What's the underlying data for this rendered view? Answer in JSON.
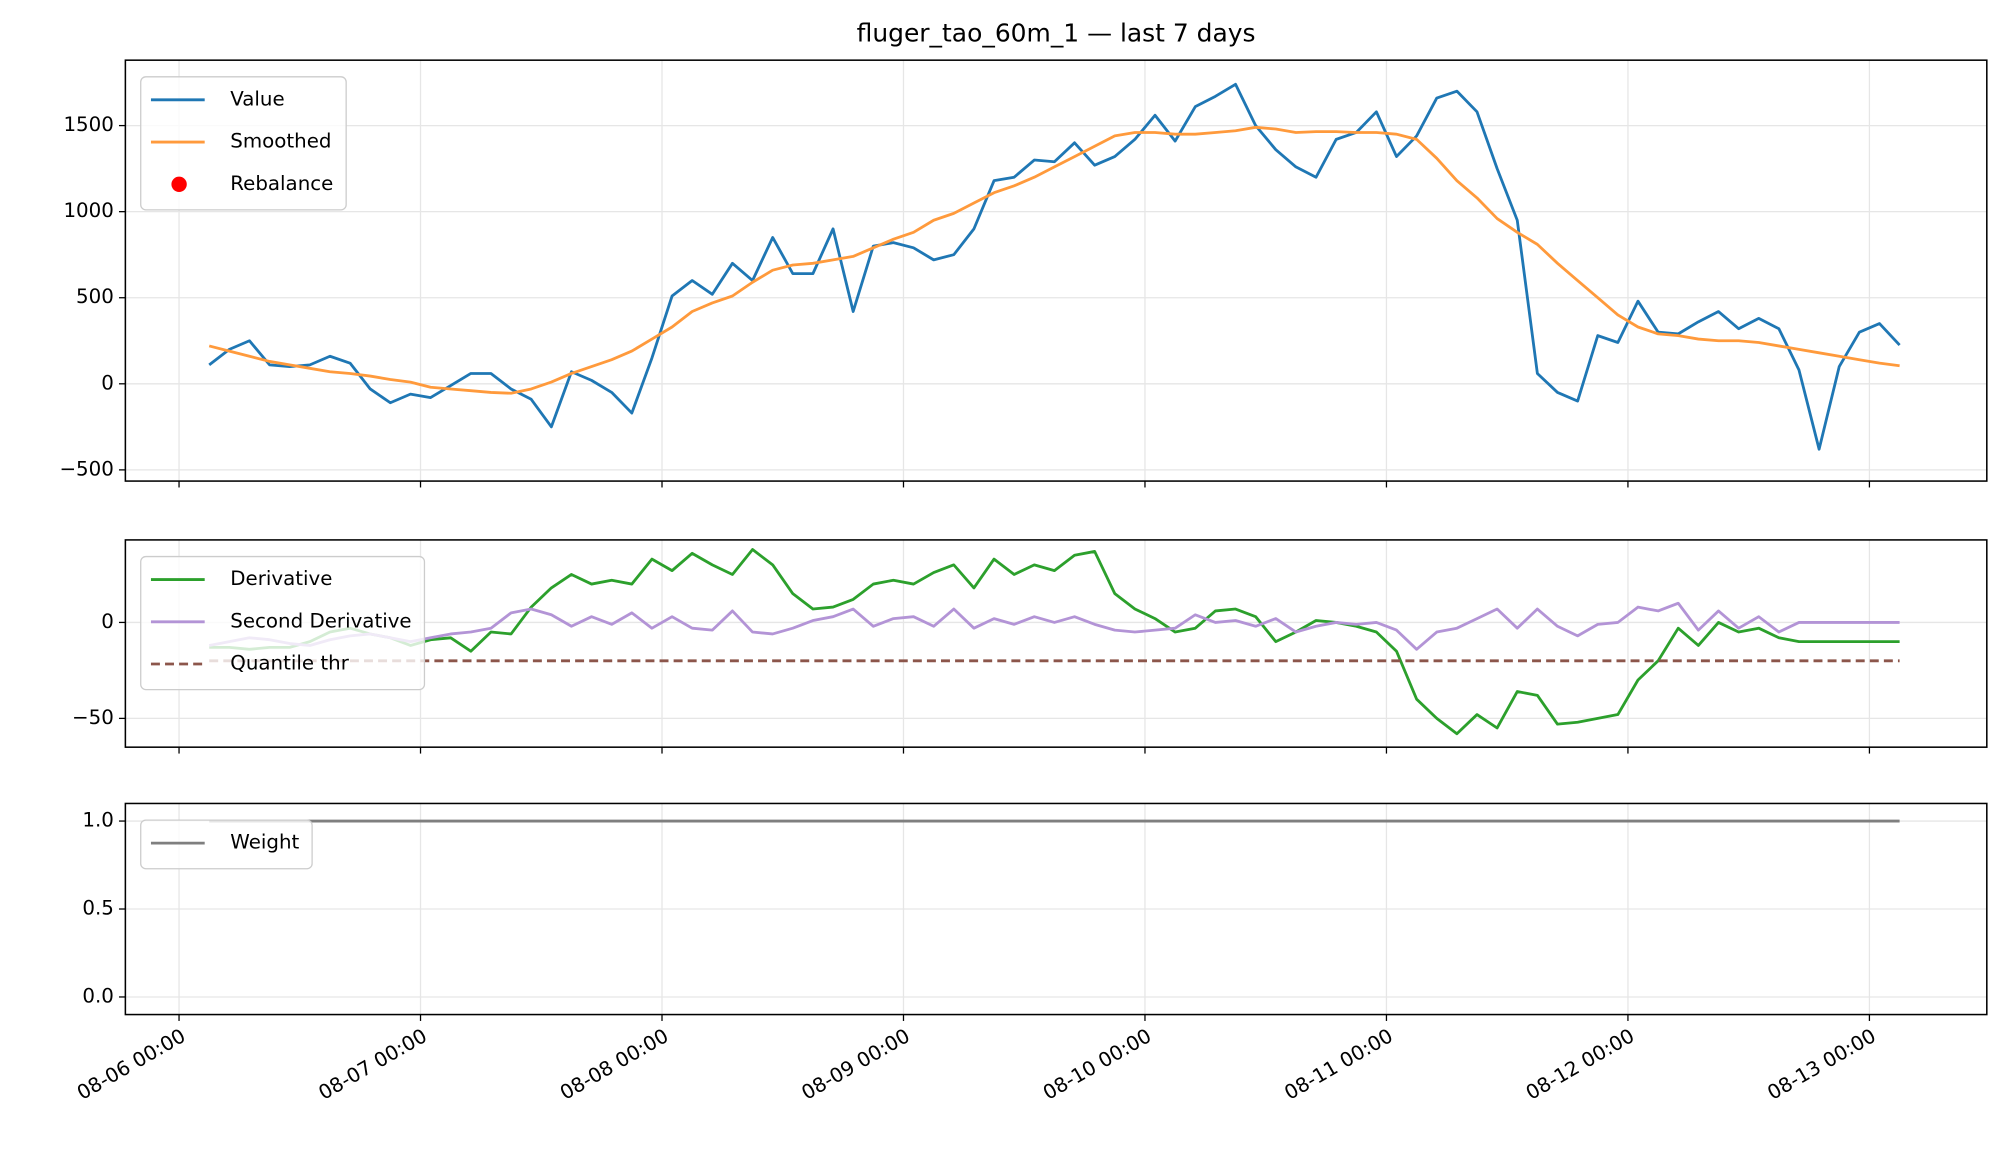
{
  "chart_data": [
    {
      "type": "line",
      "title": "fluger_tao_60m_1 — last 7 days",
      "legend": "upper left",
      "grid": true,
      "xlim": [
        "08-05 18:40",
        "08-13 11:40"
      ],
      "xticks": [
        "08-06 00:00",
        "08-07 00:00",
        "08-08 00:00",
        "08-09 00:00",
        "08-10 00:00",
        "08-11 00:00",
        "08-12 00:00",
        "08-13 00:00"
      ],
      "ylim": [
        -565,
        1880
      ],
      "yticks": [
        {
          "value": -500,
          "label": "−500"
        },
        0,
        500,
        1000,
        1500
      ],
      "x": [
        "08-06 03:00",
        "08-06 05:00",
        "08-06 07:00",
        "08-06 09:00",
        "08-06 11:00",
        "08-06 13:00",
        "08-06 15:00",
        "08-06 17:00",
        "08-06 19:00",
        "08-06 21:00",
        "08-06 23:00",
        "08-07 01:00",
        "08-07 03:00",
        "08-07 05:00",
        "08-07 07:00",
        "08-07 09:00",
        "08-07 11:00",
        "08-07 13:00",
        "08-07 15:00",
        "08-07 17:00",
        "08-07 19:00",
        "08-07 21:00",
        "08-07 23:00",
        "08-08 01:00",
        "08-08 03:00",
        "08-08 05:00",
        "08-08 07:00",
        "08-08 09:00",
        "08-08 11:00",
        "08-08 13:00",
        "08-08 15:00",
        "08-08 17:00",
        "08-08 19:00",
        "08-08 21:00",
        "08-08 23:00",
        "08-09 01:00",
        "08-09 03:00",
        "08-09 05:00",
        "08-09 07:00",
        "08-09 09:00",
        "08-09 11:00",
        "08-09 13:00",
        "08-09 15:00",
        "08-09 17:00",
        "08-09 19:00",
        "08-09 21:00",
        "08-09 23:00",
        "08-10 01:00",
        "08-10 03:00",
        "08-10 05:00",
        "08-10 07:00",
        "08-10 09:00",
        "08-10 11:00",
        "08-10 13:00",
        "08-10 15:00",
        "08-10 17:00",
        "08-10 19:00",
        "08-10 21:00",
        "08-10 23:00",
        "08-11 01:00",
        "08-11 03:00",
        "08-11 05:00",
        "08-11 07:00",
        "08-11 09:00",
        "08-11 11:00",
        "08-11 13:00",
        "08-11 15:00",
        "08-11 17:00",
        "08-11 19:00",
        "08-11 21:00",
        "08-11 23:00",
        "08-12 01:00",
        "08-12 03:00",
        "08-12 05:00",
        "08-12 07:00",
        "08-12 09:00",
        "08-12 11:00",
        "08-12 13:00",
        "08-12 15:00",
        "08-12 17:00",
        "08-12 19:00",
        "08-12 21:00",
        "08-12 23:00",
        "08-13 01:00",
        "08-13 03:00"
      ],
      "series": [
        {
          "name": "Value",
          "color": "#1f77b4",
          "values": [
            110,
            200,
            250,
            110,
            100,
            110,
            160,
            120,
            -30,
            -110,
            -60,
            -80,
            -10,
            60,
            60,
            -30,
            -90,
            -250,
            70,
            20,
            -50,
            -170,
            150,
            510,
            600,
            520,
            700,
            600,
            850,
            640,
            640,
            900,
            420,
            800,
            820,
            790,
            720,
            750,
            900,
            1180,
            1200,
            1300,
            1290,
            1400,
            1270,
            1320,
            1420,
            1560,
            1410,
            1610,
            1670,
            1740,
            1500,
            1360,
            1260,
            1200,
            1420,
            1460,
            1580,
            1320,
            1440,
            1660,
            1700,
            1580,
            1250,
            950,
            60,
            -50,
            -100,
            280,
            240,
            480,
            300,
            290,
            360,
            420,
            320,
            380,
            320,
            80,
            -380,
            100,
            300,
            350,
            225
          ]
        },
        {
          "name": "Smoothed",
          "color": "#ff9a3c",
          "values": [
            220,
            190,
            160,
            130,
            110,
            90,
            70,
            60,
            45,
            25,
            10,
            -20,
            -30,
            -40,
            -50,
            -55,
            -30,
            10,
            60,
            100,
            140,
            190,
            260,
            330,
            420,
            470,
            510,
            590,
            660,
            690,
            700,
            720,
            740,
            790,
            840,
            880,
            950,
            990,
            1050,
            1110,
            1150,
            1200,
            1260,
            1320,
            1380,
            1440,
            1460,
            1460,
            1450,
            1450,
            1460,
            1470,
            1490,
            1480,
            1460,
            1465,
            1465,
            1460,
            1460,
            1450,
            1420,
            1310,
            1180,
            1080,
            960,
            880,
            810,
            700,
            600,
            500,
            400,
            330,
            290,
            280,
            260,
            250,
            250,
            240,
            220,
            200,
            180,
            160,
            140,
            120,
            105
          ]
        },
        {
          "name": "Rebalance",
          "type": "scatter",
          "color": "red",
          "values": [
            null,
            null,
            null,
            null,
            null,
            null,
            null,
            null,
            null,
            null,
            null,
            null,
            null,
            null,
            null,
            null,
            null,
            null,
            null,
            null,
            null,
            null,
            null,
            null,
            null,
            null,
            null,
            null,
            null,
            null,
            null,
            null,
            null,
            null,
            null,
            null,
            null,
            null,
            null,
            null,
            null,
            null,
            null,
            null,
            null,
            null,
            null,
            null,
            null,
            null,
            null,
            null,
            null,
            null,
            null,
            null,
            null,
            null,
            null,
            null,
            null,
            null,
            null,
            null,
            null,
            null,
            null,
            null,
            null,
            null,
            null,
            null,
            null,
            null,
            null,
            null,
            null,
            null,
            null,
            null,
            null,
            null,
            null,
            null,
            null
          ]
        }
      ]
    },
    {
      "type": "line",
      "legend": "upper left",
      "grid": true,
      "xlim": [
        "08-05 18:40",
        "08-13 11:40"
      ],
      "xticks": [
        "08-06 00:00",
        "08-07 00:00",
        "08-08 00:00",
        "08-09 00:00",
        "08-10 00:00",
        "08-11 00:00",
        "08-12 00:00",
        "08-13 00:00"
      ],
      "ylim": [
        -65,
        43
      ],
      "yticks": [
        {
          "value": -50,
          "label": "−50"
        },
        0
      ],
      "x": [
        "08-06 03:00",
        "08-06 05:00",
        "08-06 07:00",
        "08-06 09:00",
        "08-06 11:00",
        "08-06 13:00",
        "08-06 15:00",
        "08-06 17:00",
        "08-06 19:00",
        "08-06 21:00",
        "08-06 23:00",
        "08-07 01:00",
        "08-07 03:00",
        "08-07 05:00",
        "08-07 07:00",
        "08-07 09:00",
        "08-07 11:00",
        "08-07 13:00",
        "08-07 15:00",
        "08-07 17:00",
        "08-07 19:00",
        "08-07 21:00",
        "08-07 23:00",
        "08-08 01:00",
        "08-08 03:00",
        "08-08 05:00",
        "08-08 07:00",
        "08-08 09:00",
        "08-08 11:00",
        "08-08 13:00",
        "08-08 15:00",
        "08-08 17:00",
        "08-08 19:00",
        "08-08 21:00",
        "08-08 23:00",
        "08-09 01:00",
        "08-09 03:00",
        "08-09 05:00",
        "08-09 07:00",
        "08-09 09:00",
        "08-09 11:00",
        "08-09 13:00",
        "08-09 15:00",
        "08-09 17:00",
        "08-09 19:00",
        "08-09 21:00",
        "08-09 23:00",
        "08-10 01:00",
        "08-10 03:00",
        "08-10 05:00",
        "08-10 07:00",
        "08-10 09:00",
        "08-10 11:00",
        "08-10 13:00",
        "08-10 15:00",
        "08-10 17:00",
        "08-10 19:00",
        "08-10 21:00",
        "08-10 23:00",
        "08-11 01:00",
        "08-11 03:00",
        "08-11 05:00",
        "08-11 07:00",
        "08-11 09:00",
        "08-11 11:00",
        "08-11 13:00",
        "08-11 15:00",
        "08-11 17:00",
        "08-11 19:00",
        "08-11 21:00",
        "08-11 23:00",
        "08-12 01:00",
        "08-12 03:00",
        "08-12 05:00",
        "08-12 07:00",
        "08-12 09:00",
        "08-12 11:00",
        "08-12 13:00",
        "08-12 15:00",
        "08-12 17:00",
        "08-12 19:00",
        "08-12 21:00",
        "08-12 23:00",
        "08-13 01:00",
        "08-13 03:00"
      ],
      "series": [
        {
          "name": "Derivative",
          "color": "#2ca02c",
          "values": [
            -13,
            -13,
            -14,
            -13,
            -13,
            -10,
            -5,
            -3,
            -6,
            -8,
            -12,
            -9,
            -8,
            -15,
            -5,
            -6,
            8,
            18,
            25,
            20,
            22,
            20,
            33,
            27,
            36,
            30,
            25,
            38,
            30,
            15,
            7,
            8,
            12,
            20,
            22,
            20,
            26,
            30,
            18,
            33,
            25,
            30,
            27,
            35,
            37,
            15,
            7,
            2,
            -5,
            -3,
            6,
            7,
            3,
            -10,
            -5,
            1,
            0,
            -2,
            -5,
            -15,
            -40,
            -50,
            -58,
            -48,
            -55,
            -36,
            -38,
            -53,
            -52,
            -50,
            -48,
            -30,
            -20,
            -3,
            -12,
            0,
            -5,
            -3,
            -8,
            -10,
            -10,
            -10,
            -10,
            -10,
            -10
          ]
        },
        {
          "name": "Second Derivative",
          "color": "#b394d6",
          "values": [
            -12,
            -10,
            -8,
            -9,
            -11,
            -12,
            -9,
            -7,
            -6,
            -8,
            -10,
            -8,
            -6,
            -5,
            -3,
            5,
            7,
            4,
            -2,
            3,
            -1,
            5,
            -3,
            3,
            -3,
            -4,
            6,
            -5,
            -6,
            -3,
            1,
            3,
            7,
            -2,
            2,
            3,
            -2,
            7,
            -3,
            2,
            -1,
            3,
            0,
            3,
            -1,
            -4,
            -5,
            -4,
            -3,
            4,
            0,
            1,
            -2,
            2,
            -5,
            -2,
            0,
            -1,
            0,
            -4,
            -14,
            -5,
            -3,
            2,
            7,
            -3,
            7,
            -2,
            -7,
            -1,
            0,
            8,
            6,
            10,
            -4,
            6,
            -3,
            3,
            -5,
            0,
            0,
            0,
            0,
            0,
            0
          ]
        },
        {
          "name": "Quantile thr",
          "color": "#8c564b",
          "linestyle": "dashed",
          "values": [
            -20,
            -20,
            -20,
            -20,
            -20,
            -20,
            -20,
            -20,
            -20,
            -20,
            -20,
            -20,
            -20,
            -20,
            -20,
            -20,
            -20,
            -20,
            -20,
            -20,
            -20,
            -20,
            -20,
            -20,
            -20,
            -20,
            -20,
            -20,
            -20,
            -20,
            -20,
            -20,
            -20,
            -20,
            -20,
            -20,
            -20,
            -20,
            -20,
            -20,
            -20,
            -20,
            -20,
            -20,
            -20,
            -20,
            -20,
            -20,
            -20,
            -20,
            -20,
            -20,
            -20,
            -20,
            -20,
            -20,
            -20,
            -20,
            -20,
            -20,
            -20,
            -20,
            -20,
            -20,
            -20,
            -20,
            -20,
            -20,
            -20,
            -20,
            -20,
            -20,
            -20,
            -20,
            -20,
            -20,
            -20,
            -20,
            -20,
            -20,
            -20,
            -20,
            -20,
            -20,
            -20
          ]
        }
      ]
    },
    {
      "type": "line",
      "legend": "upper left",
      "grid": true,
      "xlim": [
        "08-05 18:40",
        "08-13 11:40"
      ],
      "xticks": [
        "08-06 00:00",
        "08-07 00:00",
        "08-08 00:00",
        "08-09 00:00",
        "08-10 00:00",
        "08-11 00:00",
        "08-12 00:00",
        "08-13 00:00"
      ],
      "ylim": [
        -0.1,
        1.1
      ],
      "yticks": [
        {
          "value": 0,
          "label": "0.0"
        },
        {
          "value": 0.5,
          "label": "0.5"
        },
        {
          "value": 1,
          "label": "1.0"
        }
      ],
      "x": [
        "08-06 03:00",
        "08-06 05:00",
        "08-06 07:00",
        "08-06 09:00",
        "08-06 11:00",
        "08-06 13:00",
        "08-06 15:00",
        "08-06 17:00",
        "08-06 19:00",
        "08-06 21:00",
        "08-06 23:00",
        "08-07 01:00",
        "08-07 03:00",
        "08-07 05:00",
        "08-07 07:00",
        "08-07 09:00",
        "08-07 11:00",
        "08-07 13:00",
        "08-07 15:00",
        "08-07 17:00",
        "08-07 19:00",
        "08-07 21:00",
        "08-07 23:00",
        "08-08 01:00",
        "08-08 03:00",
        "08-08 05:00",
        "08-08 07:00",
        "08-08 09:00",
        "08-08 11:00",
        "08-08 13:00",
        "08-08 15:00",
        "08-08 17:00",
        "08-08 19:00",
        "08-08 21:00",
        "08-08 23:00",
        "08-09 01:00",
        "08-09 03:00",
        "08-09 05:00",
        "08-09 07:00",
        "08-09 09:00",
        "08-09 11:00",
        "08-09 13:00",
        "08-09 15:00",
        "08-09 17:00",
        "08-09 19:00",
        "08-09 21:00",
        "08-09 23:00",
        "08-10 01:00",
        "08-10 03:00",
        "08-10 05:00",
        "08-10 07:00",
        "08-10 09:00",
        "08-10 11:00",
        "08-10 13:00",
        "08-10 15:00",
        "08-10 17:00",
        "08-10 19:00",
        "08-10 21:00",
        "08-10 23:00",
        "08-11 01:00",
        "08-11 03:00",
        "08-11 05:00",
        "08-11 07:00",
        "08-11 09:00",
        "08-11 11:00",
        "08-11 13:00",
        "08-11 15:00",
        "08-11 17:00",
        "08-11 19:00",
        "08-11 21:00",
        "08-11 23:00",
        "08-12 01:00",
        "08-12 03:00",
        "08-12 05:00",
        "08-12 07:00",
        "08-12 09:00",
        "08-12 11:00",
        "08-12 13:00",
        "08-12 15:00",
        "08-12 17:00",
        "08-12 19:00",
        "08-12 21:00",
        "08-12 23:00",
        "08-13 01:00",
        "08-13 03:00"
      ],
      "series": [
        {
          "name": "Weight",
          "color": "#7f7f7f",
          "values": [
            1,
            1,
            1,
            1,
            1,
            1,
            1,
            1,
            1,
            1,
            1,
            1,
            1,
            1,
            1,
            1,
            1,
            1,
            1,
            1,
            1,
            1,
            1,
            1,
            1,
            1,
            1,
            1,
            1,
            1,
            1,
            1,
            1,
            1,
            1,
            1,
            1,
            1,
            1,
            1,
            1,
            1,
            1,
            1,
            1,
            1,
            1,
            1,
            1,
            1,
            1,
            1,
            1,
            1,
            1,
            1,
            1,
            1,
            1,
            1,
            1,
            1,
            1,
            1,
            1,
            1,
            1,
            1,
            1,
            1,
            1,
            1,
            1,
            1,
            1,
            1,
            1,
            1,
            1,
            1,
            1,
            1,
            1,
            1,
            1
          ]
        }
      ]
    }
  ]
}
